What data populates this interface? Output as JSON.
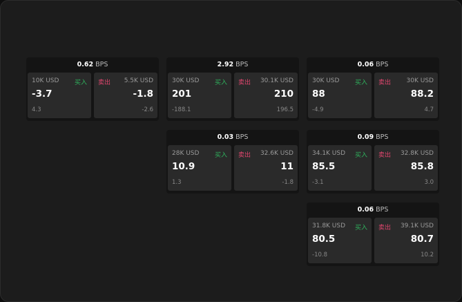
{
  "cards": [
    {
      "spread": "0.62",
      "unit": "BPS",
      "bid": {
        "size": "10K USD",
        "label": "买入",
        "price": "-3.7",
        "change": "4.3"
      },
      "ask": {
        "size": "5.5K USD",
        "label": "卖出",
        "price": "-1.8",
        "change": "-2.6"
      }
    },
    {
      "spread": "2.92",
      "unit": "BPS",
      "bid": {
        "size": "30K USD",
        "label": "买入",
        "price": "201",
        "change": "-188.1"
      },
      "ask": {
        "size": "30.1K USD",
        "label": "卖出",
        "price": "210",
        "change": "196.5"
      }
    },
    {
      "spread": "0.06",
      "unit": "BPS",
      "bid": {
        "size": "30K USD",
        "label": "买入",
        "price": "88",
        "change": "-4.9"
      },
      "ask": {
        "size": "30K USD",
        "label": "卖出",
        "price": "88.2",
        "change": "4.7"
      }
    },
    {
      "spread": "0.03",
      "unit": "BPS",
      "bid": {
        "size": "28K USD",
        "label": "买入",
        "price": "10.9",
        "change": "1.3"
      },
      "ask": {
        "size": "32.6K USD",
        "label": "卖出",
        "price": "11",
        "change": "-1.8"
      }
    },
    {
      "spread": "0.09",
      "unit": "BPS",
      "bid": {
        "size": "34.1K USD",
        "label": "买入",
        "price": "85.5",
        "change": "-3.1"
      },
      "ask": {
        "size": "32.8K USD",
        "label": "卖出",
        "price": "85.8",
        "change": "3.0"
      }
    },
    {
      "spread": "0.06",
      "unit": "BPS",
      "bid": {
        "size": "31.8K USD",
        "label": "买入",
        "price": "80.5",
        "change": "-10.8"
      },
      "ask": {
        "size": "39.1K USD",
        "label": "卖出",
        "price": "80.7",
        "change": "10.2"
      }
    }
  ],
  "colors": {
    "buy": "#2fb35d",
    "sell": "#e0456e"
  }
}
